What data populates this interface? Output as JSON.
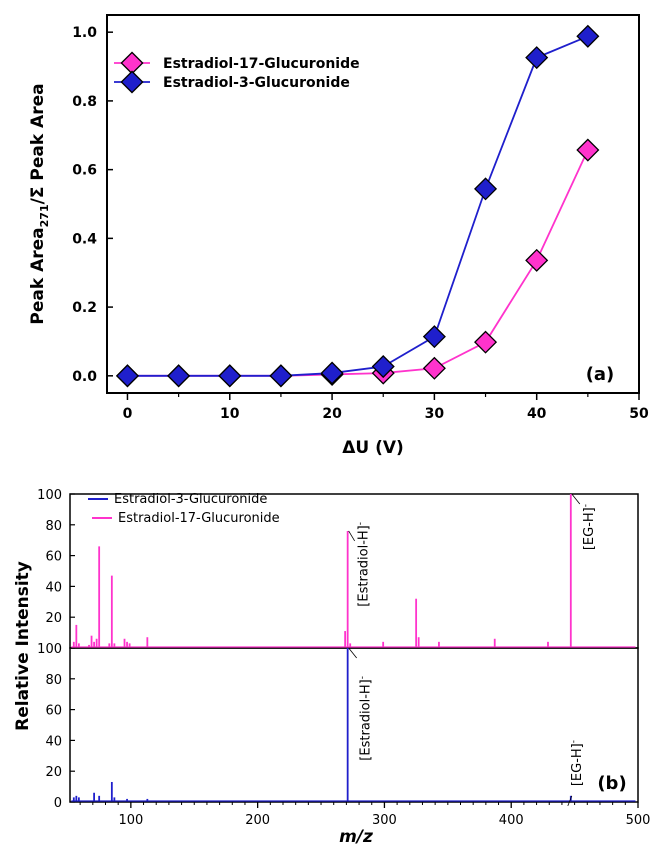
{
  "colors": {
    "magenta": "#ff33cc",
    "blue": "#1f1fcc",
    "axis": "#000000"
  },
  "chart_data": [
    {
      "type": "line",
      "panel_label": "(a)",
      "xlabel": "ΔU (V)",
      "ylabel_main": "Peak Area",
      "ylabel_sub": "271",
      "ylabel_rest": "/Σ Peak Area",
      "xlim": [
        -2,
        50
      ],
      "ylim": [
        -0.05,
        1.05
      ],
      "xticks": [
        "0",
        "10",
        "20",
        "30",
        "40",
        "50"
      ],
      "yticks": [
        "0.0",
        "0.2",
        "0.4",
        "0.6",
        "0.8",
        "1.0"
      ],
      "x": [
        0,
        5,
        10,
        15,
        20,
        25,
        30,
        35,
        40,
        45
      ],
      "legend_position": "top-left",
      "series": [
        {
          "name": "Estradiol-17-Glucuronide",
          "color": "#ff33cc",
          "values": [
            0.0,
            0.0,
            0.0,
            0.0,
            0.004,
            0.008,
            0.022,
            0.098,
            0.336,
            0.657
          ]
        },
        {
          "name": "Estradiol-3-Glucuronide",
          "color": "#1f1fcc",
          "values": [
            0.0,
            0.0,
            0.0,
            0.0,
            0.008,
            0.027,
            0.114,
            0.544,
            0.926,
            0.988
          ]
        }
      ]
    },
    {
      "type": "bar",
      "panel_label": "(b)",
      "xlabel": "m/z",
      "ylabel": "Relative Intensity",
      "xlim": [
        52,
        500
      ],
      "ylim": [
        0,
        100
      ],
      "xticks": [
        "100",
        "200",
        "300",
        "400",
        "500"
      ],
      "yticks": [
        "0",
        "20",
        "40",
        "60",
        "80",
        "100"
      ],
      "legend_position": "top-left",
      "legend": [
        {
          "name": "Estradiol-3-Glucuronide",
          "color": "#1f1fcc"
        },
        {
          "name": "Estradiol-17-Glucuronide",
          "color": "#ff33cc"
        }
      ],
      "series": [
        {
          "name": "Estradiol-17-Glucuronide",
          "color": "#ff33cc",
          "peaks": [
            {
              "mz": 55,
              "intensity": 4
            },
            {
              "mz": 57,
              "intensity": 15
            },
            {
              "mz": 59,
              "intensity": 3
            },
            {
              "mz": 67,
              "intensity": 2
            },
            {
              "mz": 69,
              "intensity": 8
            },
            {
              "mz": 71,
              "intensity": 4
            },
            {
              "mz": 73,
              "intensity": 6
            },
            {
              "mz": 75,
              "intensity": 66
            },
            {
              "mz": 83,
              "intensity": 3
            },
            {
              "mz": 85,
              "intensity": 47
            },
            {
              "mz": 87,
              "intensity": 3
            },
            {
              "mz": 95,
              "intensity": 6
            },
            {
              "mz": 97,
              "intensity": 4
            },
            {
              "mz": 99,
              "intensity": 3
            },
            {
              "mz": 113,
              "intensity": 7
            },
            {
              "mz": 269,
              "intensity": 11
            },
            {
              "mz": 271,
              "intensity": 76
            },
            {
              "mz": 273,
              "intensity": 3
            },
            {
              "mz": 299,
              "intensity": 4
            },
            {
              "mz": 325,
              "intensity": 32
            },
            {
              "mz": 327,
              "intensity": 7
            },
            {
              "mz": 343,
              "intensity": 4
            },
            {
              "mz": 387,
              "intensity": 6
            },
            {
              "mz": 429,
              "intensity": 4
            },
            {
              "mz": 447,
              "intensity": 100
            }
          ],
          "annotations": [
            {
              "mz": 271,
              "intensity": 76,
              "label": "[Estradiol-H]",
              "sup": "-"
            },
            {
              "mz": 447,
              "intensity": 100,
              "label": "[EG-H]",
              "sup": "-"
            }
          ]
        },
        {
          "name": "Estradiol-3-Glucuronide",
          "color": "#1f1fcc",
          "peaks": [
            {
              "mz": 55,
              "intensity": 3
            },
            {
              "mz": 57,
              "intensity": 4
            },
            {
              "mz": 59,
              "intensity": 3
            },
            {
              "mz": 71,
              "intensity": 6
            },
            {
              "mz": 75,
              "intensity": 4
            },
            {
              "mz": 85,
              "intensity": 13
            },
            {
              "mz": 87,
              "intensity": 3
            },
            {
              "mz": 97,
              "intensity": 2
            },
            {
              "mz": 113,
              "intensity": 2
            },
            {
              "mz": 271,
              "intensity": 100
            },
            {
              "mz": 447,
              "intensity": 4
            }
          ],
          "annotations": [
            {
              "mz": 271,
              "intensity": 100,
              "label": "[Estradiol-H]",
              "sup": "-"
            },
            {
              "mz": 447,
              "intensity": 4,
              "label": "[EG-H]",
              "sup": "-"
            }
          ]
        }
      ]
    }
  ]
}
